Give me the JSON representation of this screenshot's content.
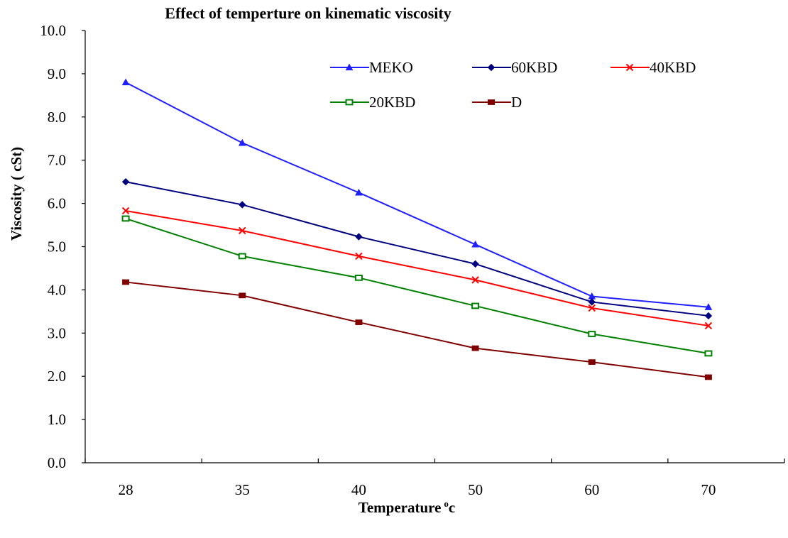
{
  "chart_data": {
    "type": "line",
    "title": "Effect of temperture on kinematic viscosity",
    "xlabel": "Temperature",
    "xlabel_unit": "o",
    "xlabel_suffix": "c",
    "ylabel": "Viscosity ( cSt)",
    "categories": [
      "28",
      "35",
      "40",
      "50",
      "60",
      "70"
    ],
    "ylim": [
      0,
      10
    ],
    "yticks": [
      "0.0",
      "1.0",
      "2.0",
      "3.0",
      "4.0",
      "5.0",
      "6.0",
      "7.0",
      "8.0",
      "9.0",
      "10.0"
    ],
    "grid": false,
    "legend_position": "top-right",
    "series": [
      {
        "name": "MEKO",
        "color": "#1f1fff",
        "marker": "triangle",
        "values": [
          8.8,
          7.4,
          6.25,
          5.05,
          3.85,
          3.6
        ]
      },
      {
        "name": "60KBD",
        "color": "#000080",
        "marker": "diamond",
        "values": [
          6.5,
          5.97,
          5.23,
          4.6,
          3.72,
          3.4
        ]
      },
      {
        "name": "40KBD",
        "color": "#ff0000",
        "marker": "x",
        "values": [
          5.83,
          5.37,
          4.78,
          4.23,
          3.58,
          3.17
        ]
      },
      {
        "name": "20KBD",
        "color": "#008000",
        "marker": "square-open",
        "values": [
          5.65,
          4.78,
          4.28,
          3.63,
          2.98,
          2.53
        ]
      },
      {
        "name": "D",
        "color": "#800000",
        "marker": "square",
        "values": [
          4.18,
          3.87,
          3.25,
          2.65,
          2.33,
          1.98
        ]
      }
    ]
  }
}
